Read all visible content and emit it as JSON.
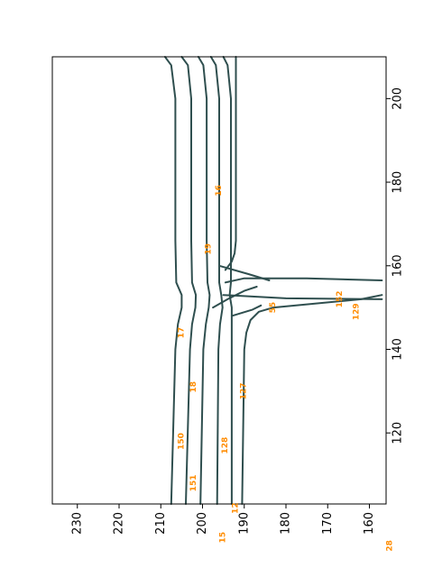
{
  "chart_data": {
    "type": "line",
    "orientation": "rotated-90",
    "colors": {
      "road": "#2f4f4f",
      "label": "#ff8c00",
      "frame": "#000000"
    },
    "xlim": [
      103,
      210
    ],
    "ylim": [
      156,
      236
    ],
    "x_ticks": [
      120,
      140,
      160,
      180,
      200
    ],
    "y_ticks": [
      230,
      220,
      210,
      200,
      190,
      180,
      170,
      160
    ],
    "grid": false,
    "series": [
      {
        "x": [
          103,
          140,
          146,
          150,
          153,
          156,
          166,
          200,
          208,
          210
        ],
        "y": [
          207.5,
          206.5,
          205.9,
          205,
          205,
          206.3,
          206.5,
          206.5,
          207.5,
          209
        ]
      },
      {
        "x": [
          103,
          140,
          146,
          150,
          153,
          156,
          166,
          200,
          208,
          210
        ],
        "y": [
          204,
          203,
          202.5,
          201.7,
          201.6,
          202.5,
          202.7,
          202.7,
          203.5,
          205
        ]
      },
      {
        "x": [
          103,
          140,
          146,
          150,
          153,
          156,
          166,
          200,
          208,
          210
        ],
        "y": [
          200.5,
          199.8,
          199.2,
          198.5,
          198.3,
          198.8,
          199,
          199,
          199.8,
          201
        ]
      },
      {
        "x": [
          103,
          140,
          146,
          150,
          153,
          156,
          166,
          200,
          208,
          210
        ],
        "y": [
          196.5,
          196.2,
          195.8,
          195.2,
          195.5,
          196,
          196,
          196,
          196.8,
          198
        ]
      },
      {
        "x": [
          103,
          140,
          146,
          150,
          153,
          156,
          166,
          200,
          208,
          210
        ],
        "y": [
          193,
          193,
          193,
          193,
          193.5,
          193.2,
          193.2,
          193.2,
          194,
          195
        ]
      },
      {
        "x": [
          103,
          140,
          144,
          147,
          149,
          150
        ],
        "y": [
          190.5,
          190,
          189.5,
          188.5,
          186.5,
          183
        ]
      },
      {
        "x": [
          150,
          152,
          153
        ],
        "y": [
          183,
          162,
          157
        ]
      },
      {
        "x": [
          153,
          152.2,
          152
        ],
        "y": [
          195,
          180,
          157
        ]
      },
      {
        "x": [
          156,
          157,
          157,
          156.5
        ],
        "y": [
          194.5,
          190,
          175,
          157
        ]
      },
      {
        "x": [
          160,
          158,
          156.5
        ],
        "y": [
          196,
          189,
          184
        ]
      },
      {
        "x": [
          150,
          152,
          154,
          155
        ],
        "y": [
          197.5,
          194,
          190,
          187
        ]
      },
      {
        "x": [
          148,
          149.5,
          150.5
        ],
        "y": [
          193,
          188,
          186
        ]
      },
      {
        "x": [
          159,
          161,
          163,
          166,
          200,
          210
        ],
        "y": [
          194.5,
          193,
          192.3,
          192,
          192,
          192
        ]
      }
    ],
    "annotations": [
      {
        "text": "17",
        "x": 144,
        "y": 205
      },
      {
        "text": "18",
        "x": 131,
        "y": 202
      },
      {
        "text": "150",
        "x": 118,
        "y": 205
      },
      {
        "text": "151",
        "x": 108,
        "y": 202
      },
      {
        "text": "128",
        "x": 117,
        "y": 194.5
      },
      {
        "text": "127",
        "x": 130,
        "y": 190
      },
      {
        "text": "12",
        "x": 102,
        "y": 192
      },
      {
        "text": "15",
        "x": 95,
        "y": 195
      },
      {
        "text": "55",
        "x": 150,
        "y": 183
      },
      {
        "text": "152",
        "x": 152,
        "y": 167
      },
      {
        "text": "129",
        "x": 149,
        "y": 163
      },
      {
        "text": "19",
        "x": 164,
        "y": 198.5
      },
      {
        "text": "16",
        "x": 178,
        "y": 196
      },
      {
        "text": "28",
        "x": 93,
        "y": 155
      }
    ]
  }
}
